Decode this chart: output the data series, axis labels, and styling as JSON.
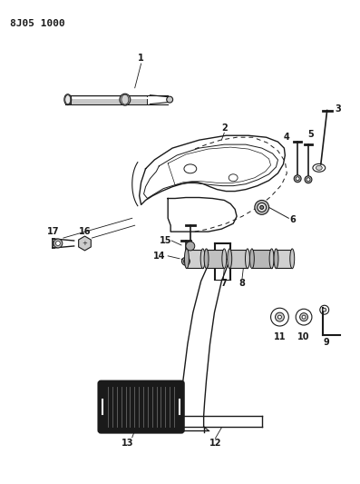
{
  "title": "8J05 1000",
  "bg_color": "#ffffff",
  "line_color": "#1a1a1a",
  "figsize": [
    3.97,
    5.33
  ],
  "dpi": 100
}
